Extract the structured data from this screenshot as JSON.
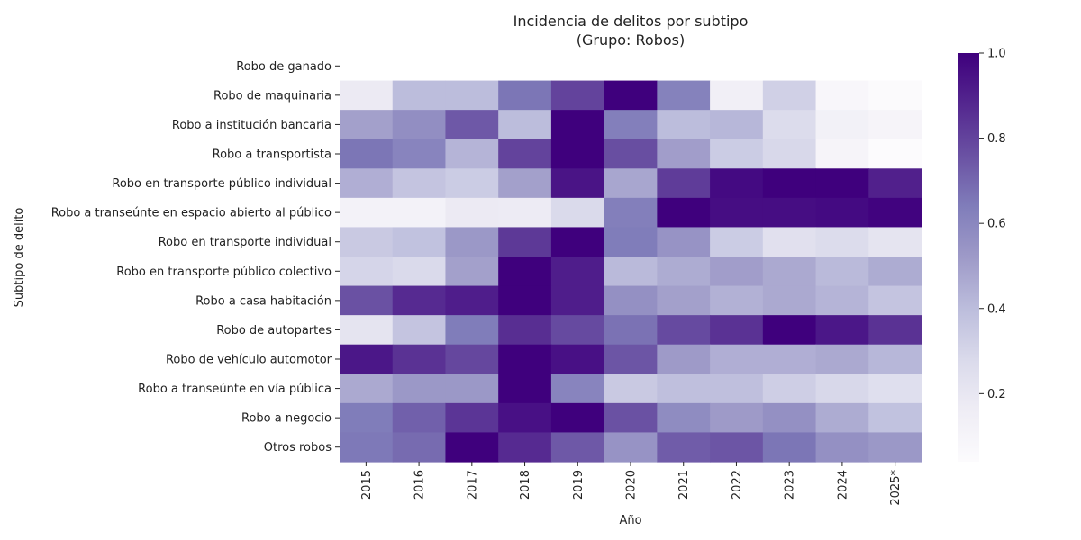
{
  "chart_data": {
    "type": "heatmap",
    "title": "Incidencia de delitos por subtipo",
    "subtitle": "(Grupo: Robos)",
    "xlabel": "Año",
    "ylabel": "Subtipo de delito",
    "x_categories": [
      "2015",
      "2016",
      "2017",
      "2018",
      "2019",
      "2020",
      "2021",
      "2022",
      "2023",
      "2024",
      "2025*"
    ],
    "y_categories": [
      "Robo de ganado",
      "Robo de maquinaria",
      "Robo a institución bancaria",
      "Robo a transportista",
      "Robo en transporte público individual",
      "Robo a transeúnte en espacio abierto al público",
      "Robo en transporte individual",
      "Robo en transporte público colectivo",
      "Robo a casa habitación",
      "Robo de autopartes",
      "Robo de vehículo automotor",
      "Robo a transeúnte en vía pública",
      "Robo a negocio",
      "Otros robos"
    ],
    "values": [
      [
        null,
        null,
        null,
        null,
        null,
        null,
        null,
        null,
        null,
        null,
        null
      ],
      [
        0.18,
        0.4,
        0.4,
        0.66,
        0.8,
        1.0,
        0.62,
        0.14,
        0.32,
        0.08,
        0.05
      ],
      [
        0.5,
        0.57,
        0.74,
        0.4,
        1.0,
        0.63,
        0.4,
        0.42,
        0.27,
        0.13,
        0.1
      ],
      [
        0.66,
        0.61,
        0.43,
        0.8,
        1.0,
        0.77,
        0.51,
        0.34,
        0.29,
        0.1,
        0.04
      ],
      [
        0.45,
        0.37,
        0.34,
        0.5,
        0.94,
        0.48,
        0.82,
        0.97,
        1.0,
        1.0,
        0.9
      ],
      [
        0.12,
        0.12,
        0.18,
        0.17,
        0.28,
        0.63,
        1.0,
        0.96,
        0.96,
        0.97,
        0.99
      ],
      [
        0.35,
        0.38,
        0.53,
        0.83,
        1.0,
        0.64,
        0.55,
        0.34,
        0.24,
        0.27,
        0.22
      ],
      [
        0.3,
        0.28,
        0.5,
        1.0,
        0.91,
        0.41,
        0.46,
        0.51,
        0.47,
        0.41,
        0.46
      ],
      [
        0.76,
        0.87,
        0.91,
        1.0,
        0.91,
        0.56,
        0.5,
        0.44,
        0.47,
        0.43,
        0.37
      ],
      [
        0.22,
        0.37,
        0.64,
        0.86,
        0.78,
        0.67,
        0.78,
        0.85,
        1.0,
        0.93,
        0.85
      ],
      [
        0.93,
        0.85,
        0.79,
        1.0,
        0.95,
        0.75,
        0.52,
        0.45,
        0.45,
        0.47,
        0.42
      ],
      [
        0.47,
        0.53,
        0.53,
        1.0,
        0.61,
        0.35,
        0.39,
        0.39,
        0.33,
        0.29,
        0.25
      ],
      [
        0.64,
        0.72,
        0.84,
        0.95,
        1.0,
        0.76,
        0.58,
        0.52,
        0.56,
        0.46,
        0.38
      ],
      [
        0.65,
        0.69,
        1.0,
        0.87,
        0.74,
        0.55,
        0.73,
        0.75,
        0.66,
        0.56,
        0.53
      ]
    ],
    "colorbar": {
      "min": 0.04,
      "max": 1.0,
      "ticks": [
        0.2,
        0.4,
        0.6,
        0.8,
        1.0
      ],
      "tick_labels": [
        "0.2",
        "0.4",
        "0.6",
        "0.8",
        "1.0"
      ]
    },
    "colormap": "Purples",
    "grid": false,
    "legend": "colorbar-right"
  }
}
